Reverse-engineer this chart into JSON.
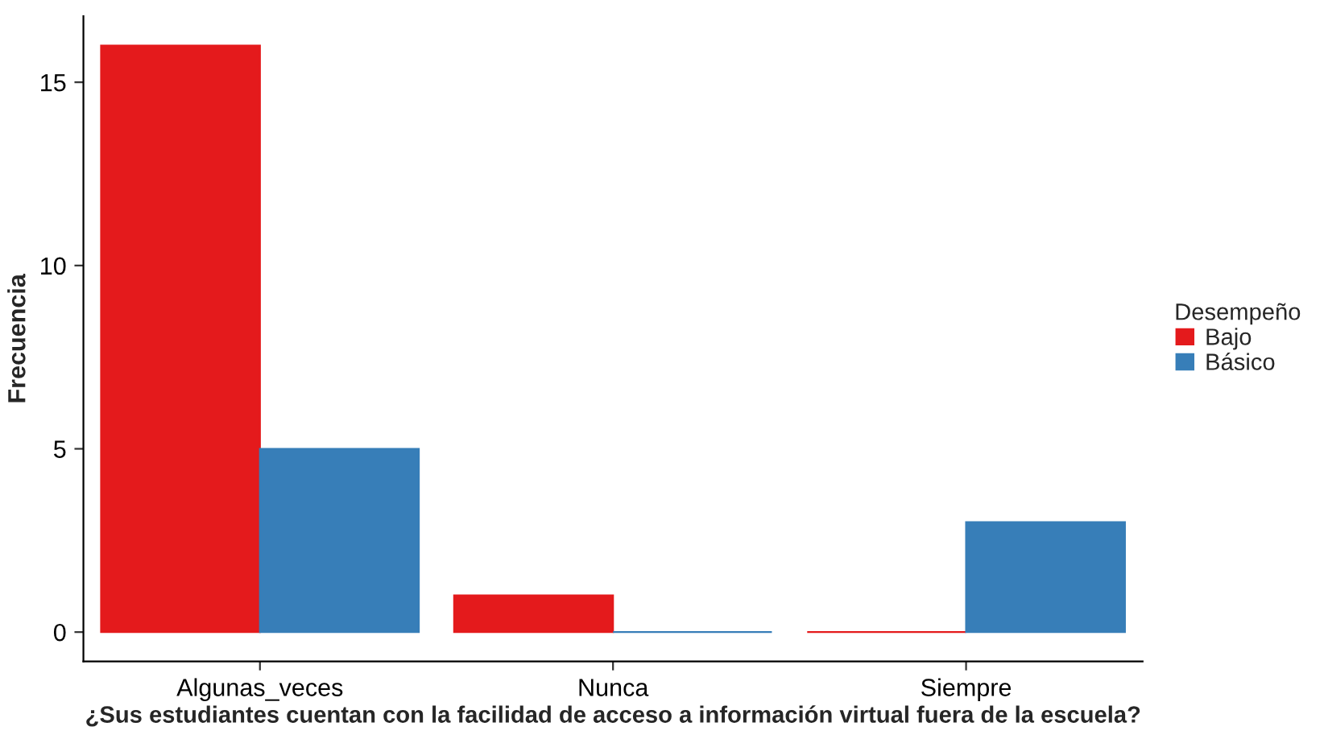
{
  "chart_data": {
    "type": "bar",
    "xlabel": "¿Sus estudiantes cuentan con la facilidad de acceso a información virtual fuera de la escuela?",
    "ylabel": "Frecuencia",
    "legend_title": "Desempeño",
    "categories": [
      "Algunas_veces",
      "Nunca",
      "Siempre"
    ],
    "series": [
      {
        "name": "Bajo",
        "color": "#e41a1c",
        "values": [
          16,
          1,
          0
        ]
      },
      {
        "name": "Básico",
        "color": "#377eb8",
        "values": [
          5,
          0,
          3
        ]
      }
    ],
    "ylim": [
      -0.8,
      16.8
    ],
    "yticks": [
      0,
      5,
      10,
      15
    ],
    "grid": false,
    "legend": "right"
  }
}
